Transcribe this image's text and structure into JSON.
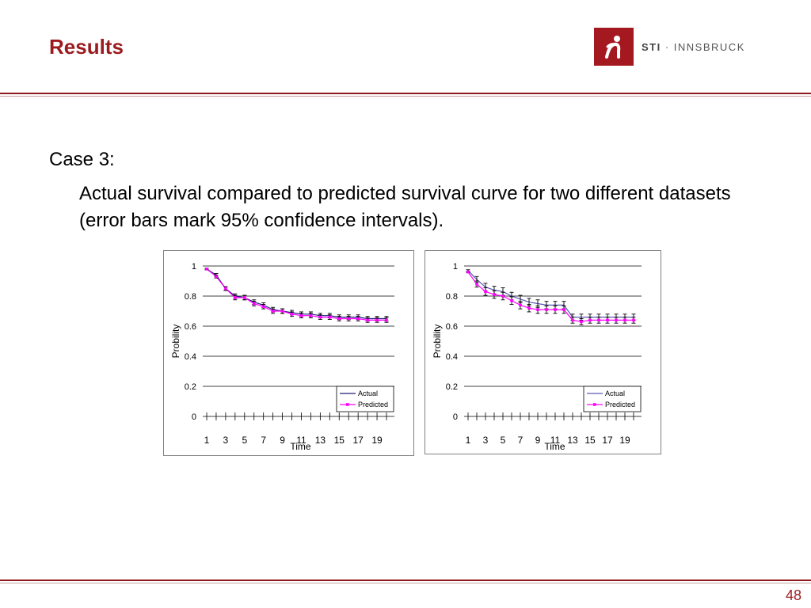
{
  "slide": {
    "title": "Results",
    "case_label": "Case 3:",
    "description": "Actual survival compared to predicted survival curve for two different datasets (error bars mark 95% confidence intervals).",
    "page_number": "48"
  },
  "logo": {
    "brand": "STI",
    "separator": " · ",
    "name": "INNSBRUCK",
    "icon": "sti-figure-icon",
    "color": "#a4191f"
  },
  "chart_data": [
    {
      "type": "line",
      "xlabel": "Time",
      "ylabel": "Probility",
      "ylim": [
        0,
        1
      ],
      "yticks": [
        "0",
        "0.2",
        "0.4",
        "0.6",
        "0.8",
        "1"
      ],
      "xticks": [
        "1",
        "3",
        "5",
        "7",
        "9",
        "11",
        "13",
        "15",
        "17",
        "19"
      ],
      "legend_position": "bottom-right",
      "x": [
        1,
        2,
        3,
        4,
        5,
        6,
        7,
        8,
        9,
        10,
        11,
        12,
        13,
        14,
        15,
        16,
        17,
        18,
        19,
        20
      ],
      "series": [
        {
          "name": "Actual",
          "color": "#1f1f7a",
          "values": [
            0.98,
            0.94,
            0.85,
            0.8,
            0.79,
            0.76,
            0.74,
            0.71,
            0.7,
            0.69,
            0.68,
            0.68,
            0.67,
            0.67,
            0.66,
            0.66,
            0.66,
            0.65,
            0.65,
            0.65
          ]
        },
        {
          "name": "Predicted",
          "color": "#ff00ff",
          "values": [
            0.98,
            0.93,
            0.85,
            0.79,
            0.79,
            0.75,
            0.73,
            0.7,
            0.7,
            0.68,
            0.67,
            0.67,
            0.66,
            0.66,
            0.65,
            0.65,
            0.65,
            0.64,
            0.64,
            0.64
          ]
        }
      ],
      "error": [
        0.005,
        0.01,
        0.012,
        0.015,
        0.015,
        0.015,
        0.015,
        0.015,
        0.015,
        0.015,
        0.015,
        0.015,
        0.015,
        0.015,
        0.015,
        0.015,
        0.015,
        0.015,
        0.015,
        0.015
      ]
    },
    {
      "type": "line",
      "xlabel": "Time",
      "ylabel": "Probility",
      "ylim": [
        0,
        1
      ],
      "yticks": [
        "0",
        "0.2",
        "0.4",
        "0.6",
        "0.8",
        "1"
      ],
      "xticks": [
        "1",
        "3",
        "5",
        "7",
        "9",
        "11",
        "13",
        "15",
        "17",
        "19"
      ],
      "legend_position": "bottom-right",
      "x": [
        1,
        2,
        3,
        4,
        5,
        6,
        7,
        8,
        9,
        10,
        11,
        12,
        13,
        14,
        15,
        16,
        17,
        18,
        19,
        20
      ],
      "series": [
        {
          "name": "Actual",
          "color": "#5a5ab0",
          "values": [
            0.97,
            0.91,
            0.86,
            0.84,
            0.83,
            0.8,
            0.78,
            0.76,
            0.75,
            0.74,
            0.74,
            0.74,
            0.66,
            0.66,
            0.66,
            0.66,
            0.66,
            0.66,
            0.66,
            0.66
          ]
        },
        {
          "name": "Predicted",
          "color": "#ff00ff",
          "values": [
            0.96,
            0.88,
            0.83,
            0.81,
            0.8,
            0.77,
            0.74,
            0.72,
            0.71,
            0.71,
            0.71,
            0.71,
            0.64,
            0.63,
            0.64,
            0.64,
            0.64,
            0.64,
            0.64,
            0.64
          ]
        }
      ],
      "error": [
        0.005,
        0.02,
        0.025,
        0.025,
        0.025,
        0.025,
        0.025,
        0.025,
        0.025,
        0.025,
        0.025,
        0.025,
        0.02,
        0.02,
        0.02,
        0.02,
        0.02,
        0.02,
        0.02,
        0.02
      ]
    }
  ]
}
